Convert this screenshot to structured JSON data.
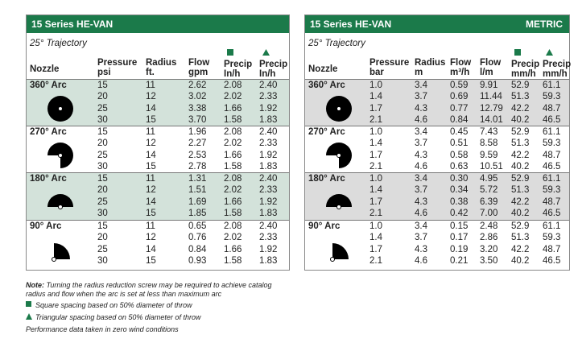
{
  "left": {
    "title": "15 Series HE-VAN",
    "subtitle": "25° Trajectory",
    "nozzle_header": "Nozzle",
    "columns": [
      {
        "top": "Pressure",
        "bottom": "psi"
      },
      {
        "top": "Radius",
        "bottom": "ft."
      },
      {
        "top": "Flow",
        "bottom": "gpm"
      },
      {
        "top": "Precip",
        "bottom": "In/h"
      },
      {
        "top": "Precip",
        "bottom": "In/h"
      }
    ],
    "groups": [
      {
        "label": "360° Arc",
        "rows": [
          [
            "15",
            "11",
            "2.62",
            "2.08",
            "2.40"
          ],
          [
            "20",
            "12",
            "3.02",
            "2.02",
            "2.33"
          ],
          [
            "25",
            "14",
            "3.38",
            "1.66",
            "1.92"
          ],
          [
            "30",
            "15",
            "3.70",
            "1.58",
            "1.83"
          ]
        ]
      },
      {
        "label": "270° Arc",
        "rows": [
          [
            "15",
            "11",
            "1.96",
            "2.08",
            "2.40"
          ],
          [
            "20",
            "12",
            "2.27",
            "2.02",
            "2.33"
          ],
          [
            "25",
            "14",
            "2.53",
            "1.66",
            "1.92"
          ],
          [
            "30",
            "15",
            "2.78",
            "1.58",
            "1.83"
          ]
        ]
      },
      {
        "label": "180° Arc",
        "rows": [
          [
            "15",
            "11",
            "1.31",
            "2.08",
            "2.40"
          ],
          [
            "20",
            "12",
            "1.51",
            "2.02",
            "2.33"
          ],
          [
            "25",
            "14",
            "1.69",
            "1.66",
            "1.92"
          ],
          [
            "30",
            "15",
            "1.85",
            "1.58",
            "1.83"
          ]
        ]
      },
      {
        "label": "90° Arc",
        "rows": [
          [
            "15",
            "11",
            "0.65",
            "2.08",
            "2.40"
          ],
          [
            "20",
            "12",
            "0.76",
            "2.02",
            "2.33"
          ],
          [
            "25",
            "14",
            "0.84",
            "1.66",
            "1.92"
          ],
          [
            "30",
            "15",
            "0.93",
            "1.58",
            "1.83"
          ]
        ]
      }
    ]
  },
  "right": {
    "title": "15 Series HE-VAN",
    "tag": "METRIC",
    "subtitle": "25° Trajectory",
    "nozzle_header": "Nozzle",
    "columns": [
      {
        "top": "Pressure",
        "bottom": "bar"
      },
      {
        "top": "Radius",
        "bottom": "m"
      },
      {
        "top": "Flow",
        "bottom": "m³/h"
      },
      {
        "top": "Flow",
        "bottom": "l/m"
      },
      {
        "top": "Precip",
        "bottom": "mm/h"
      },
      {
        "top": "Precip",
        "bottom": "mm/h"
      }
    ],
    "groups": [
      {
        "label": "360° Arc",
        "rows": [
          [
            "1.0",
            "3.4",
            "0.59",
            "9.91",
            "52.9",
            "61.1"
          ],
          [
            "1.4",
            "3.7",
            "0.69",
            "11.44",
            "51.3",
            "59.3"
          ],
          [
            "1.7",
            "4.3",
            "0.77",
            "12.79",
            "42.2",
            "48.7"
          ],
          [
            "2.1",
            "4.6",
            "0.84",
            "14.01",
            "40.2",
            "46.5"
          ]
        ]
      },
      {
        "label": "270° Arc",
        "rows": [
          [
            "1.0",
            "3.4",
            "0.45",
            "7.43",
            "52.9",
            "61.1"
          ],
          [
            "1.4",
            "3.7",
            "0.51",
            "8.58",
            "51.3",
            "59.3"
          ],
          [
            "1.7",
            "4.3",
            "0.58",
            "9.59",
            "42.2",
            "48.7"
          ],
          [
            "2.1",
            "4.6",
            "0.63",
            "10.51",
            "40.2",
            "46.5"
          ]
        ]
      },
      {
        "label": "180° Arc",
        "rows": [
          [
            "1.0",
            "3.4",
            "0.30",
            "4.95",
            "52.9",
            "61.1"
          ],
          [
            "1.4",
            "3.7",
            "0.34",
            "5.72",
            "51.3",
            "59.3"
          ],
          [
            "1.7",
            "4.3",
            "0.38",
            "6.39",
            "42.2",
            "48.7"
          ],
          [
            "2.1",
            "4.6",
            "0.42",
            "7.00",
            "40.2",
            "46.5"
          ]
        ]
      },
      {
        "label": "90° Arc",
        "rows": [
          [
            "1.0",
            "3.4",
            "0.15",
            "2.48",
            "52.9",
            "61.1"
          ],
          [
            "1.4",
            "3.7",
            "0.17",
            "2.86",
            "51.3",
            "59.3"
          ],
          [
            "1.7",
            "4.3",
            "0.19",
            "3.20",
            "42.2",
            "48.7"
          ],
          [
            "2.1",
            "4.6",
            "0.21",
            "3.50",
            "40.2",
            "46.5"
          ]
        ]
      }
    ]
  },
  "notes": {
    "note_label": "Note:",
    "note_text": "Turning the radius reduction screw may be required to achieve catalog radius and flow when the arc is set at less than maximum arc",
    "square": "Square spacing based on 50% diameter of throw",
    "triangle": "Triangular spacing based on 50% diameter of throw",
    "footer": "Performance data taken in zero wind conditions"
  }
}
